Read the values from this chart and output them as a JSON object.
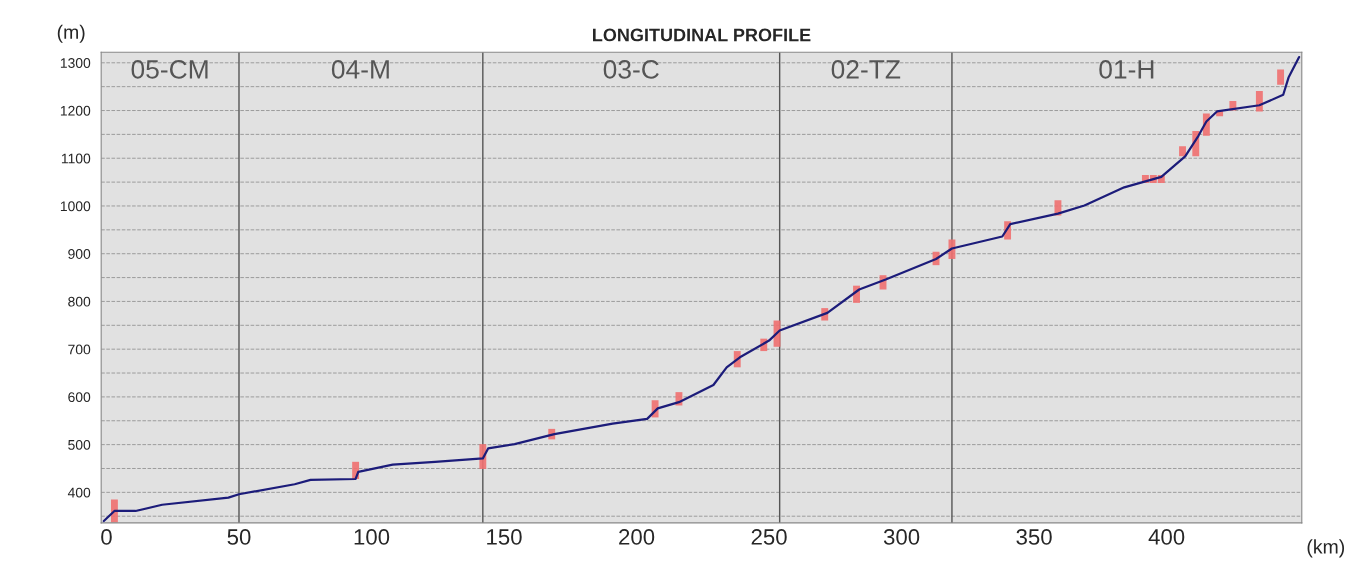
{
  "chart_data": {
    "type": "line",
    "title": "LONGITUDINAL PROFILE",
    "xlabel": "(km)",
    "ylabel": "(m)",
    "series": [
      {
        "color": "#1c1c7a",
        "x": [
          -1,
          3,
          11,
          21,
          46,
          50,
          71,
          77,
          94,
          95,
          108,
          124,
          142,
          144,
          154,
          169,
          191,
          204,
          208,
          216,
          229,
          234,
          239,
          250,
          254,
          272,
          284,
          294,
          313,
          319,
          338,
          341,
          359,
          369,
          384,
          398,
          407,
          412,
          415,
          419,
          435,
          444,
          446,
          450
        ],
        "values": [
          340,
          361,
          361,
          374,
          389,
          396,
          417,
          426,
          428,
          443,
          458,
          464,
          471,
          492,
          501,
          522,
          544,
          554,
          576,
          589,
          625,
          662,
          683,
          718,
          739,
          776,
          825,
          846,
          889,
          911,
          936,
          962,
          984,
          1001,
          1039,
          1061,
          1104,
          1147,
          1177,
          1198,
          1211,
          1233,
          1269,
          1312
        ]
      },
      {
        "type": "bar",
        "color": "#f07070",
        "x": [
          3,
          94,
          142,
          168,
          207,
          216,
          238,
          248,
          253,
          271,
          283,
          293,
          313,
          319,
          340,
          359,
          392,
          395,
          398,
          406,
          411,
          415,
          420,
          425,
          435,
          443
        ],
        "base": [
          337,
          428,
          449,
          511,
          557,
          582,
          662,
          696,
          705,
          760,
          797,
          825,
          876,
          889,
          930,
          980,
          1048,
          1048,
          1048,
          1104,
          1104,
          1147,
          1188,
          1200,
          1198,
          1254
        ],
        "values": [
          48,
          36,
          52,
          22,
          36,
          28,
          34,
          26,
          55,
          26,
          36,
          30,
          28,
          41,
          38,
          32,
          17,
          17,
          17,
          21,
          53,
          47,
          12,
          20,
          43,
          32
        ]
      }
    ],
    "ref_lines": [
      {
        "axis": "x",
        "value": 50,
        "color": "#555555"
      },
      {
        "axis": "x",
        "value": 142,
        "color": "#555555"
      },
      {
        "axis": "x",
        "value": 254,
        "color": "#555555"
      },
      {
        "axis": "x",
        "value": 319,
        "color": "#555555"
      }
    ],
    "annotations": [
      "05-CM",
      "04-M",
      "03-C",
      "02-TZ",
      "01-H"
    ],
    "xlim": [
      -2,
      451
    ],
    "xticks": [
      0,
      50,
      100,
      150,
      200,
      250,
      300,
      350,
      400,
      {
        "value": 450,
        "label": null
      }
    ],
    "ylim": [
      336,
      1322
    ],
    "yticks": [
      {
        "value": 350,
        "label": null
      },
      400,
      {
        "value": 450,
        "label": null
      },
      500,
      {
        "value": 550,
        "label": null
      },
      600,
      {
        "value": 650,
        "label": null
      },
      700,
      {
        "value": 750,
        "label": null
      },
      800,
      {
        "value": 850,
        "label": null
      },
      900,
      {
        "value": 950,
        "label": null
      },
      1000,
      {
        "value": 1050,
        "label": null
      },
      1100,
      {
        "value": 1150,
        "label": null
      },
      1200,
      {
        "value": 1250,
        "label": null
      },
      1300
    ],
    "grid": "y",
    "legend": false
  }
}
